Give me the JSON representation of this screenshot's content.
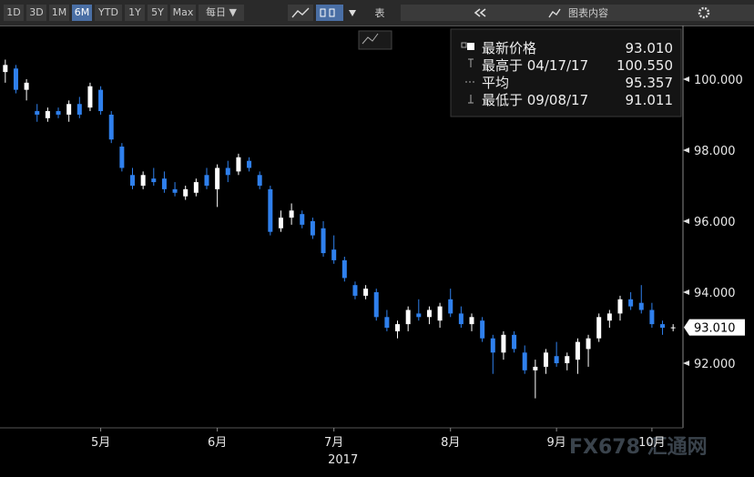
{
  "toolbar": {
    "buttons": [
      "1D",
      "3D",
      "1M",
      "6M",
      "YTD",
      "1Y",
      "5Y",
      "Max",
      "每日 ▼"
    ],
    "active": 3,
    "table_button": "表",
    "panel_button": "图表内容"
  },
  "chart_data": {
    "type": "candlestick",
    "categories": [
      null,
      null,
      null,
      null,
      null,
      null,
      null,
      null,
      null,
      "5月",
      null,
      null,
      null,
      null,
      null,
      null,
      null,
      null,
      null,
      null,
      "6月",
      null,
      null,
      null,
      null,
      null,
      null,
      null,
      null,
      null,
      null,
      "7月",
      null,
      null,
      null,
      null,
      null,
      null,
      null,
      null,
      null,
      null,
      "8月",
      null,
      null,
      null,
      null,
      null,
      null,
      null,
      null,
      null,
      "9月",
      null,
      null,
      null,
      null,
      null,
      null,
      null,
      null,
      "10月",
      null,
      null
    ],
    "x_year_label": "2017",
    "series": [
      {
        "open": [
          100.2,
          100.3,
          99.7,
          99.1,
          98.9,
          99.1,
          99.0,
          99.3,
          99.2,
          99.7,
          99.0,
          98.1,
          97.3,
          97.0,
          97.2,
          97.2,
          96.9,
          96.7,
          96.8,
          97.3,
          96.9,
          97.5,
          97.4,
          97.7,
          97.3,
          96.9,
          95.8,
          96.1,
          96.2,
          96.0,
          95.8,
          95.2,
          94.9,
          94.2,
          93.9,
          94.0,
          93.3,
          92.9,
          93.1,
          93.4,
          93.3,
          93.2,
          93.8,
          93.4,
          93.1,
          93.2,
          92.7,
          92.3,
          92.8,
          92.3,
          91.8,
          91.9,
          92.2,
          92.0,
          92.1,
          92.4,
          92.7,
          93.2,
          93.4,
          93.8,
          93.7,
          93.5,
          93.1,
          93.0
        ],
        "high": [
          100.55,
          100.4,
          100.0,
          99.3,
          99.2,
          99.2,
          99.4,
          99.5,
          99.9,
          99.8,
          99.1,
          98.2,
          97.5,
          97.4,
          97.5,
          97.4,
          97.1,
          97.0,
          97.2,
          97.5,
          97.6,
          97.7,
          97.9,
          97.8,
          97.4,
          97.0,
          96.3,
          96.5,
          96.3,
          96.1,
          96.0,
          95.6,
          95.0,
          94.3,
          94.2,
          94.1,
          93.5,
          93.2,
          93.6,
          93.8,
          93.6,
          93.7,
          94.1,
          93.6,
          93.4,
          93.3,
          92.8,
          92.9,
          92.9,
          92.5,
          92.1,
          92.4,
          92.6,
          92.3,
          92.7,
          92.8,
          93.4,
          93.5,
          93.9,
          94.0,
          94.2,
          93.7,
          93.2,
          93.1
        ],
        "low": [
          99.9,
          99.6,
          99.4,
          98.8,
          98.8,
          98.9,
          98.8,
          98.9,
          99.1,
          99.0,
          98.2,
          97.4,
          96.9,
          96.9,
          97.0,
          96.8,
          96.7,
          96.6,
          96.7,
          96.9,
          96.4,
          97.1,
          97.3,
          97.4,
          96.9,
          95.6,
          95.7,
          95.9,
          95.8,
          95.5,
          95.0,
          94.8,
          94.3,
          93.8,
          93.8,
          93.2,
          92.9,
          92.7,
          92.9,
          93.2,
          93.1,
          93.0,
          93.3,
          93.0,
          92.9,
          92.6,
          91.7,
          92.1,
          92.3,
          91.7,
          91.011,
          91.7,
          91.9,
          91.8,
          91.7,
          91.9,
          92.6,
          93.0,
          93.2,
          93.5,
          93.4,
          93.0,
          92.8,
          92.9
        ],
        "close": [
          100.4,
          99.7,
          99.9,
          99.0,
          99.1,
          99.0,
          99.3,
          99.0,
          99.8,
          99.1,
          98.3,
          97.5,
          97.0,
          97.3,
          97.1,
          96.9,
          96.8,
          96.9,
          97.1,
          97.0,
          97.5,
          97.3,
          97.8,
          97.5,
          97.0,
          95.7,
          96.1,
          96.3,
          95.9,
          95.6,
          95.1,
          94.9,
          94.4,
          93.9,
          94.1,
          93.3,
          93.0,
          93.1,
          93.5,
          93.3,
          93.5,
          93.6,
          93.4,
          93.1,
          93.3,
          92.7,
          92.3,
          92.8,
          92.4,
          91.8,
          91.9,
          92.3,
          92.0,
          92.2,
          92.6,
          92.7,
          93.3,
          93.4,
          93.8,
          93.6,
          93.5,
          93.1,
          93.0,
          93.01
        ]
      }
    ],
    "up_color": "#ffffff",
    "down_color": "#2f80ed",
    "ylim": [
      90.18,
      101.46
    ],
    "yticks": [
      {
        "value": 92,
        "label": "92.000"
      },
      {
        "value": 94,
        "label": "94.000"
      },
      {
        "value": 96,
        "label": "96.000"
      },
      {
        "value": 98,
        "label": "98.000"
      },
      {
        "value": 100,
        "label": "100.000"
      }
    ],
    "stats": [
      {
        "label": "最新价格",
        "value": 93.01,
        "value_label": "93.010"
      },
      {
        "label": "最高于 04/17/17",
        "value": 100.55,
        "value_label": "100.550"
      },
      {
        "label": "平均",
        "value": 95.357,
        "value_label": "95.357"
      },
      {
        "label": "最低于 09/08/17",
        "value": 91.011,
        "value_label": "91.011"
      }
    ],
    "last_value_stat": 0
  },
  "watermark": "FX678 汇通网"
}
